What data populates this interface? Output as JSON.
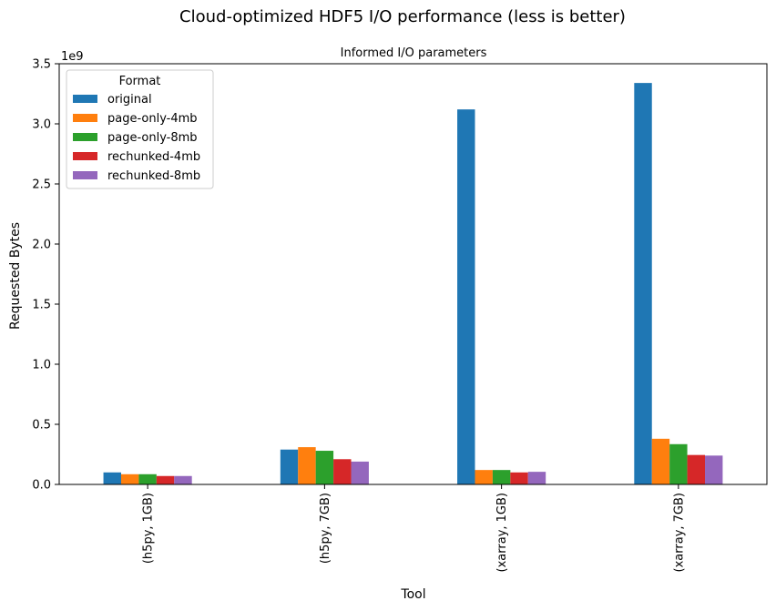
{
  "chart_data": {
    "type": "bar",
    "suptitle": "Cloud-optimized HDF5 I/O performance (less is better)",
    "title": "Informed I/O parameters",
    "xlabel": "Tool",
    "ylabel": "Requested Bytes",
    "y_scale_label": "1e9",
    "y_scale": 1000000000,
    "ylim": [
      0,
      3.5
    ],
    "yticks": [
      "0.0",
      "0.5",
      "1.0",
      "1.5",
      "2.0",
      "2.5",
      "3.0",
      "3.5"
    ],
    "grid": false,
    "legend_title": "Format",
    "legend_position": "top-left",
    "categories": [
      "(h5py, 1GB)",
      "(h5py, 7GB)",
      "(xarray, 1GB)",
      "(xarray, 7GB)"
    ],
    "series": [
      {
        "name": "original",
        "color": "#1f77b4",
        "values": [
          0.1,
          0.29,
          3.12,
          3.34
        ]
      },
      {
        "name": "page-only-4mb",
        "color": "#ff7f0e",
        "values": [
          0.085,
          0.31,
          0.12,
          0.38
        ]
      },
      {
        "name": "page-only-8mb",
        "color": "#2ca02c",
        "values": [
          0.085,
          0.28,
          0.12,
          0.335
        ]
      },
      {
        "name": "rechunked-4mb",
        "color": "#d62728",
        "values": [
          0.07,
          0.21,
          0.1,
          0.245
        ]
      },
      {
        "name": "rechunked-8mb",
        "color": "#9467bd",
        "values": [
          0.07,
          0.19,
          0.105,
          0.24
        ]
      }
    ]
  }
}
